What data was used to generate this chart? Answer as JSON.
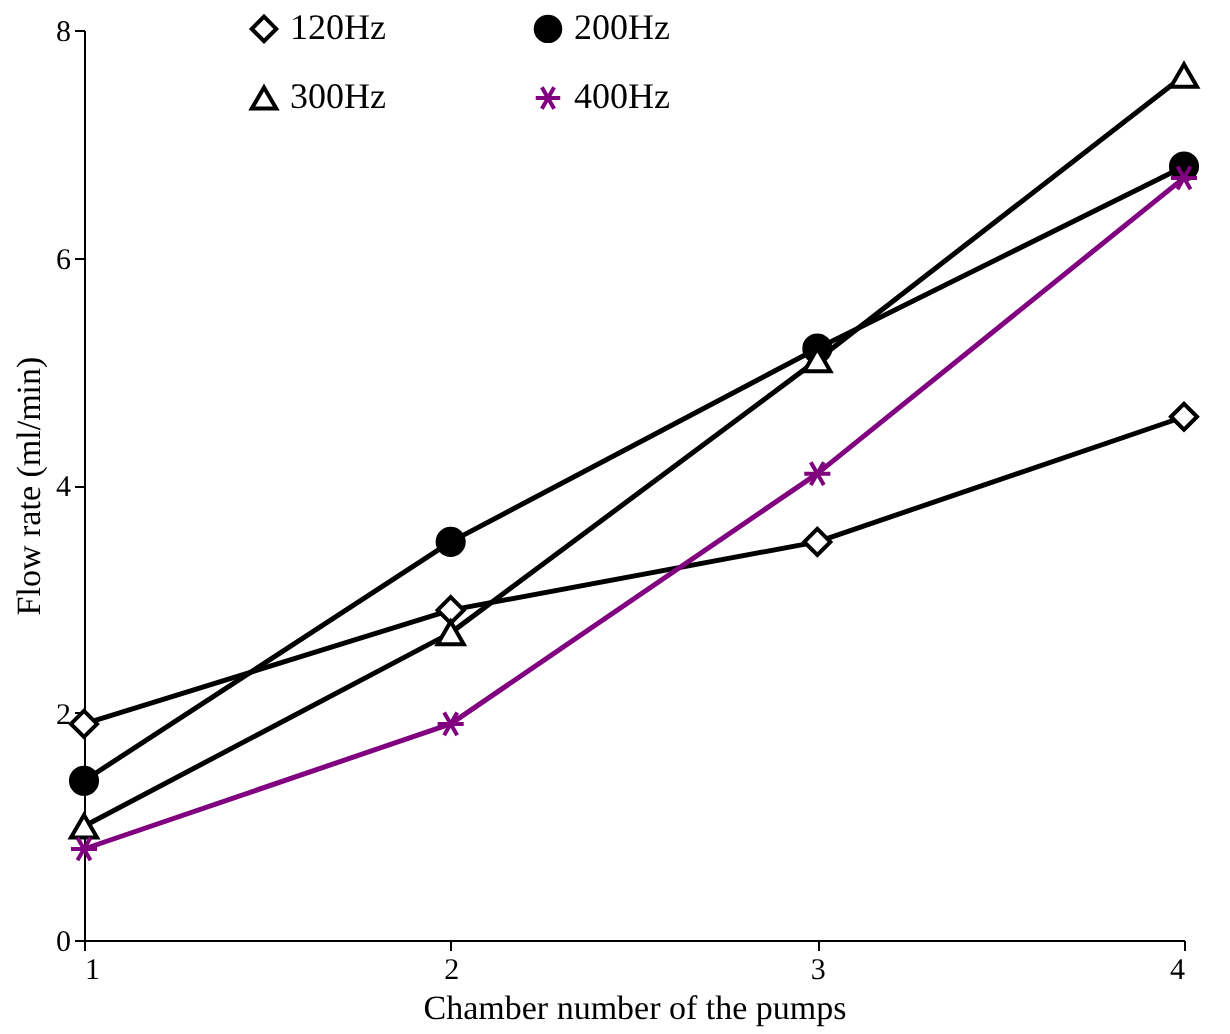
{
  "chart_data": {
    "type": "line",
    "xlabel": "Chamber number of the pumps",
    "ylabel": "Flow rate (ml/min)",
    "x": [
      1,
      2,
      3,
      4
    ],
    "xlim": [
      1,
      4
    ],
    "xticks": [
      1,
      2,
      3,
      4
    ],
    "ylim": [
      0,
      8
    ],
    "yticks": [
      0,
      2,
      4,
      6,
      8
    ],
    "grid": false,
    "legend": "top",
    "series": [
      {
        "name": "120Hz",
        "color": "#000000",
        "marker": "diamond",
        "values": [
          1.9,
          2.9,
          3.5,
          4.6
        ]
      },
      {
        "name": "200Hz",
        "color": "#000000",
        "marker": "circle",
        "values": [
          1.4,
          3.5,
          5.2,
          6.8
        ]
      },
      {
        "name": "300Hz",
        "color": "#000000",
        "marker": "triangle",
        "values": [
          1.0,
          2.7,
          5.1,
          7.6
        ]
      },
      {
        "name": "400Hz",
        "color": "#800080",
        "marker": "cross",
        "values": [
          0.8,
          1.9,
          4.1,
          6.7
        ]
      }
    ]
  }
}
